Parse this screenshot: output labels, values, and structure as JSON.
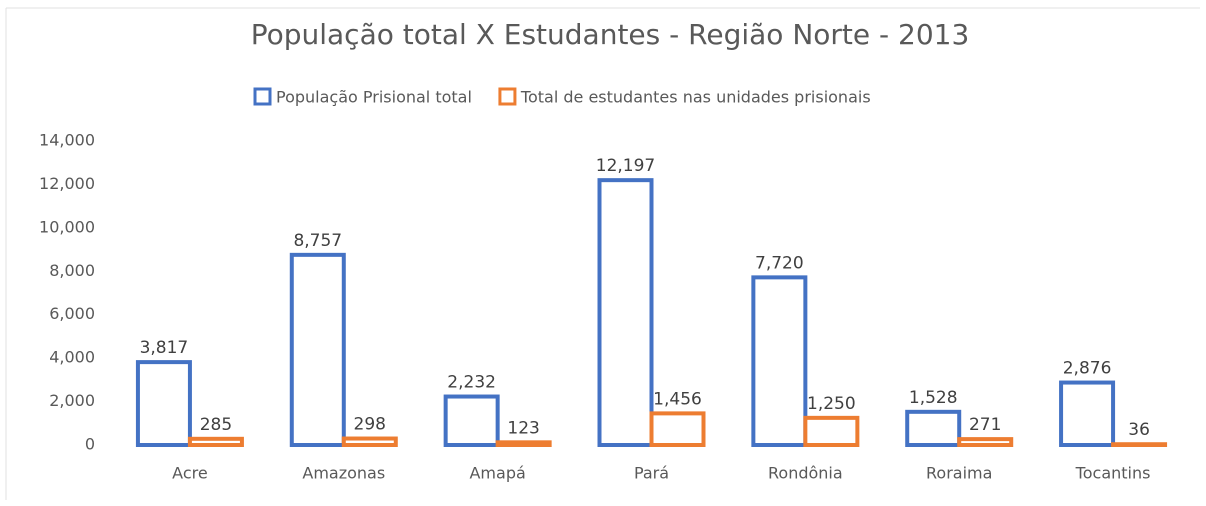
{
  "chart_data": {
    "type": "bar",
    "title": "População total X Estudantes - Região Norte - 2013",
    "categories": [
      "Acre",
      "Amazonas",
      "Amapá",
      "Pará",
      "Rondônia",
      "Roraima",
      "Tocantins"
    ],
    "series": [
      {
        "name": "População Prisional total",
        "color": "#4472c4",
        "values": [
          3817,
          8757,
          2232,
          12197,
          7720,
          1528,
          2876
        ],
        "value_labels": [
          "3,817",
          "8,757",
          "2,232",
          "12,197",
          "7,720",
          "1,528",
          "2,876"
        ]
      },
      {
        "name": "Total de estudantes nas unidades prisionais",
        "color": "#ed7d31",
        "values": [
          285,
          298,
          123,
          1456,
          1250,
          271,
          36
        ],
        "value_labels": [
          "285",
          "298",
          "123",
          "1,456",
          "1,250",
          "271",
          "36"
        ]
      }
    ],
    "ylim": [
      0,
      14000
    ],
    "yticks": [
      0,
      {
        "value": 2000,
        "label": "2,000"
      },
      {
        "value": 4000,
        "label": "4,000"
      },
      {
        "value": 6000,
        "label": "6,000"
      },
      {
        "value": 8000,
        "label": "8,000"
      },
      {
        "value": 10000,
        "label": "10,000"
      },
      {
        "value": 12000,
        "label": "12,000"
      },
      {
        "value": 14000,
        "label": "14,000"
      }
    ],
    "legend": "top"
  }
}
